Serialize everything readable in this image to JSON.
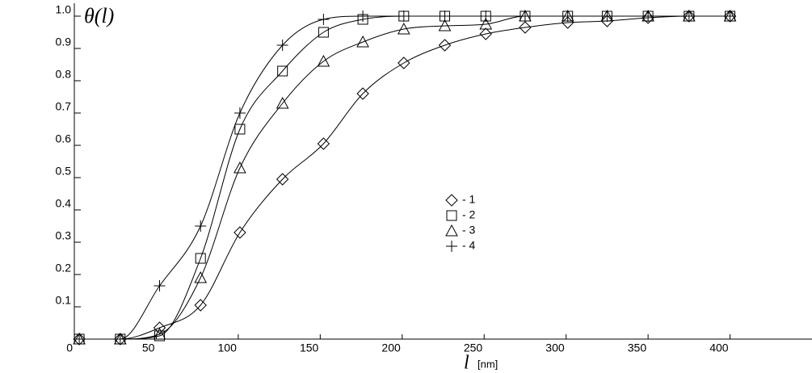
{
  "chart_data": {
    "type": "scatter",
    "y_label": "θ(l)",
    "x_label": "l",
    "x_unit": "[nm]",
    "x": [
      3,
      28,
      52,
      77,
      101,
      127,
      152,
      176,
      201,
      226,
      251,
      275,
      301,
      325,
      350,
      375,
      400
    ],
    "series": [
      {
        "name": "- 1",
        "marker": "diamond",
        "color": "#000000",
        "values": [
          0,
          0,
          0.035,
          0.105,
          0.33,
          0.495,
          0.605,
          0.76,
          0.855,
          0.91,
          0.945,
          0.965,
          0.98,
          0.985,
          0.995,
          1,
          1
        ]
      },
      {
        "name": "- 2",
        "marker": "square",
        "color": "#000000",
        "values": [
          0,
          0,
          0.01,
          0.25,
          0.65,
          0.83,
          0.95,
          0.99,
          1,
          1,
          1,
          1,
          1,
          1,
          1,
          1,
          1
        ]
      },
      {
        "name": "- 3",
        "marker": "triangle",
        "color": "#000000",
        "values": [
          0,
          0,
          0.015,
          0.19,
          0.53,
          0.73,
          0.86,
          0.92,
          0.96,
          0.97,
          0.975,
          1,
          1,
          1,
          1,
          1,
          1
        ]
      },
      {
        "name": "- 4",
        "marker": "plus",
        "color": "#000000",
        "values": [
          0,
          0,
          0.165,
          0.35,
          0.7,
          0.91,
          0.99,
          1,
          1,
          1,
          1,
          1,
          1,
          1,
          1,
          1,
          1
        ]
      }
    ],
    "xlim": [
      0,
      450
    ],
    "xticks": [
      0,
      50,
      100,
      150,
      200,
      250,
      300,
      350,
      400
    ],
    "ylim": [
      0,
      1
    ],
    "yticks": [
      0.1,
      0.2,
      0.3,
      0.4,
      0.5,
      0.6,
      0.7,
      0.8,
      0.9,
      {
        "value": 1,
        "label": "1.0"
      }
    ],
    "grid": false
  }
}
